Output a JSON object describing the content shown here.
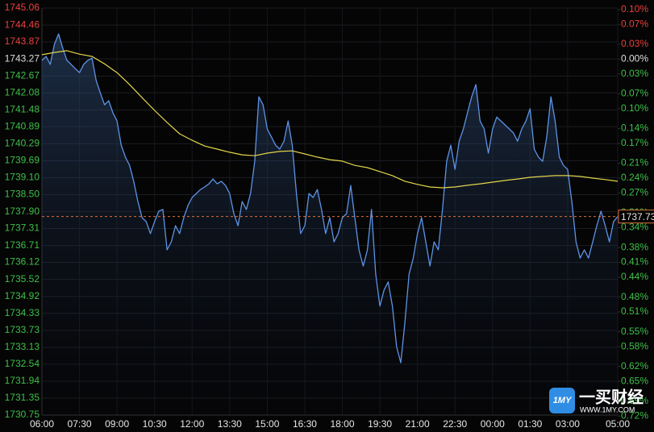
{
  "chart_data": {
    "type": "line",
    "xlim": [
      "06:00",
      "05:00"
    ],
    "xticks": [
      "06:00",
      "07:30",
      "09:00",
      "10:30",
      "12:00",
      "13:30",
      "15:00",
      "16:30",
      "18:00",
      "19:30",
      "21:00",
      "22:30",
      "00:00",
      "01:30",
      "03:00",
      "05:00"
    ],
    "ylim": [
      1730.75,
      1745.06
    ],
    "yticks": [
      1745.06,
      1744.46,
      1743.87,
      1743.27,
      1742.67,
      {
        "value": 1742.08,
        "label": "1742.08"
      },
      1741.48,
      1740.89,
      1740.29,
      1739.69,
      {
        "value": 1739.1,
        "label": "1739.10"
      },
      {
        "value": 1738.5,
        "label": "1738.50"
      },
      {
        "value": 1737.9,
        "label": "1737.90"
      },
      1737.31,
      1736.71,
      1736.12,
      1735.52,
      1734.92,
      1734.33,
      1733.73,
      1733.13,
      1732.54,
      1731.94,
      1731.35,
      1730.75
    ],
    "y2lim": [
      -0.718,
      0.103
    ],
    "y2ticks": [
      {
        "value": 0.1,
        "label": "0.10%"
      },
      {
        "value": 0.07,
        "label": "0.07%"
      },
      {
        "value": 0.03,
        "label": "0.03%"
      },
      {
        "value": 0,
        "label": "0.00%"
      },
      {
        "value": -0.03,
        "label": "0.03%"
      },
      {
        "value": -0.07,
        "label": "0.07%"
      },
      {
        "value": -0.1,
        "label": "0.10%"
      },
      {
        "value": -0.14,
        "label": "0.14%"
      },
      {
        "value": -0.17,
        "label": "0.17%"
      },
      {
        "value": -0.21,
        "label": "0.21%"
      },
      {
        "value": -0.24,
        "label": "0.24%"
      },
      {
        "value": -0.27,
        "label": "0.27%"
      },
      {
        "value": -0.31,
        "label": "0.31%"
      },
      {
        "value": -0.34,
        "label": "0.34%"
      },
      {
        "value": -0.38,
        "label": "0.38%"
      },
      {
        "value": -0.41,
        "label": "0.41%"
      },
      {
        "value": -0.44,
        "label": "0.44%"
      },
      {
        "value": -0.48,
        "label": "0.48%"
      },
      {
        "value": -0.51,
        "label": "0.51%"
      },
      {
        "value": -0.55,
        "label": "0.55%"
      },
      {
        "value": -0.58,
        "label": "0.58%"
      },
      {
        "value": -0.62,
        "label": "0.62%"
      },
      {
        "value": -0.65,
        "label": "0.65%"
      },
      {
        "value": -0.69,
        "label": "0.69%"
      },
      {
        "value": -0.72,
        "label": "0.72%"
      }
    ],
    "reference": 1743.27,
    "up_color": "#e8413c",
    "down_color": "#3fbf4a",
    "flat_color": "#dddddd",
    "grid": true,
    "last_price": 1737.73,
    "last_price_color": "#e0703a",
    "series": [
      {
        "color": "#5d93e6",
        "x": [
          "06:00",
          "06:10",
          "06:20",
          "06:30",
          "06:40",
          "06:50",
          "07:00",
          "07:10",
          "07:20",
          "07:30",
          "07:40",
          "07:50",
          "08:00",
          "08:10",
          "08:20",
          "08:30",
          "08:40",
          "08:50",
          "09:00",
          "09:10",
          "09:20",
          "09:30",
          "09:40",
          "09:50",
          "10:00",
          "10:10",
          "10:20",
          "10:30",
          "10:40",
          "10:50",
          "11:00",
          "11:10",
          "11:20",
          "11:30",
          "11:40",
          "11:50",
          "12:00",
          "12:10",
          "12:20",
          "12:30",
          "12:40",
          "12:50",
          "13:00",
          "13:10",
          "13:20",
          "13:30",
          "13:40",
          "13:50",
          "14:00",
          "14:10",
          "14:20",
          "14:30",
          "14:40",
          "14:50",
          "15:00",
          "15:10",
          "15:20",
          "15:30",
          "15:40",
          "15:50",
          "16:00",
          "16:10",
          "16:20",
          "16:30",
          "16:40",
          "16:50",
          "17:00",
          "17:10",
          "17:20",
          "17:30",
          "17:40",
          "17:50",
          "18:00",
          "18:10",
          "18:20",
          "18:30",
          "18:40",
          "18:50",
          "19:00",
          "19:10",
          "19:20",
          "19:30",
          "19:40",
          "19:50",
          "20:00",
          "20:10",
          "20:20",
          "20:30",
          "20:40",
          "20:50",
          "21:00",
          "21:10",
          "21:20",
          "21:30",
          "21:40",
          "21:50",
          "22:00",
          "22:10",
          "22:20",
          "22:30",
          "22:40",
          "22:50",
          "23:00",
          "23:10",
          "23:20",
          "23:30",
          "23:40",
          "23:50",
          "00:00",
          "00:10",
          "00:20",
          "00:30",
          "00:40",
          "00:50",
          "01:00",
          "01:10",
          "01:20",
          "01:30",
          "01:40",
          "01:50",
          "02:00",
          "02:10",
          "02:20",
          "02:30",
          "02:40",
          "02:50",
          "03:00",
          "03:10",
          "03:20",
          "03:30",
          "03:40",
          "03:50",
          "04:00",
          "04:10",
          "04:20",
          "04:30",
          "04:40",
          "04:50",
          "05:00"
        ],
        "values": [
          1743.22,
          1743.36,
          1743.08,
          1743.79,
          1744.15,
          1743.64,
          1743.22,
          1743.08,
          1742.93,
          1742.79,
          1743.08,
          1743.22,
          1743.3,
          1742.51,
          1742.08,
          1741.66,
          1741.8,
          1741.38,
          1741.09,
          1740.24,
          1739.82,
          1739.53,
          1738.97,
          1738.26,
          1737.69,
          1737.55,
          1737.13,
          1737.55,
          1737.92,
          1737.98,
          1736.56,
          1736.84,
          1737.41,
          1737.13,
          1737.69,
          1738.12,
          1738.4,
          1738.54,
          1738.68,
          1738.77,
          1738.88,
          1739.05,
          1738.88,
          1738.97,
          1738.82,
          1738.54,
          1737.83,
          1737.41,
          1738.26,
          1737.98,
          1738.54,
          1739.67,
          1741.94,
          1741.66,
          1740.81,
          1740.53,
          1740.24,
          1740.1,
          1740.38,
          1741.09,
          1740.24,
          1738.54,
          1737.13,
          1737.41,
          1738.54,
          1738.4,
          1738.68,
          1737.98,
          1737.13,
          1737.69,
          1736.84,
          1737.13,
          1737.69,
          1737.83,
          1738.82,
          1737.69,
          1736.56,
          1735.99,
          1736.56,
          1737.98,
          1735.71,
          1734.58,
          1735.15,
          1735.43,
          1734.58,
          1733.16,
          1732.59,
          1734.01,
          1735.71,
          1736.27,
          1737.13,
          1737.69,
          1736.84,
          1735.99,
          1736.84,
          1736.56,
          1737.98,
          1739.67,
          1740.24,
          1739.39,
          1740.38,
          1740.81,
          1741.38,
          1741.94,
          1742.37,
          1741.09,
          1740.81,
          1739.96,
          1740.81,
          1741.23,
          1741.09,
          1740.95,
          1740.81,
          1740.67,
          1740.38,
          1740.81,
          1741.09,
          1741.52,
          1740.1,
          1739.82,
          1739.67,
          1740.53,
          1741.94,
          1741.09,
          1739.82,
          1739.53,
          1739.39,
          1738.26,
          1736.84,
          1736.27,
          1736.56,
          1736.27,
          1736.84,
          1737.41,
          1737.92,
          1737.41,
          1736.84,
          1737.55,
          1737.73
        ]
      },
      {
        "color": "#e2d54a",
        "x": [
          "06:00",
          "06:30",
          "07:00",
          "07:30",
          "08:00",
          "08:30",
          "09:00",
          "09:30",
          "10:00",
          "10:30",
          "11:00",
          "11:30",
          "12:00",
          "12:30",
          "13:00",
          "13:30",
          "14:00",
          "14:30",
          "15:00",
          "15:30",
          "16:00",
          "16:30",
          "17:00",
          "17:30",
          "18:00",
          "18:30",
          "19:00",
          "19:30",
          "20:00",
          "20:30",
          "21:00",
          "21:30",
          "22:00",
          "22:30",
          "23:00",
          "23:30",
          "00:00",
          "00:30",
          "01:00",
          "01:30",
          "02:00",
          "02:30",
          "03:00",
          "03:30",
          "04:00",
          "04:30",
          "05:00"
        ],
        "values": [
          1743.42,
          1743.5,
          1743.56,
          1743.44,
          1743.36,
          1743.1,
          1742.79,
          1742.37,
          1741.91,
          1741.46,
          1741.04,
          1740.64,
          1740.41,
          1740.21,
          1740.1,
          1739.99,
          1739.9,
          1739.87,
          1739.96,
          1740.02,
          1740.04,
          1739.93,
          1739.82,
          1739.73,
          1739.68,
          1739.53,
          1739.45,
          1739.31,
          1739.17,
          1738.97,
          1738.86,
          1738.77,
          1738.74,
          1738.77,
          1738.83,
          1738.88,
          1738.94,
          1739.0,
          1739.05,
          1739.11,
          1739.14,
          1739.17,
          1739.17,
          1739.14,
          1739.08,
          1739.03,
          1738.97
        ]
      }
    ]
  },
  "watermark": {
    "icon": "1MY",
    "name": "一买财经",
    "url": "WWW.1MY.COM"
  }
}
